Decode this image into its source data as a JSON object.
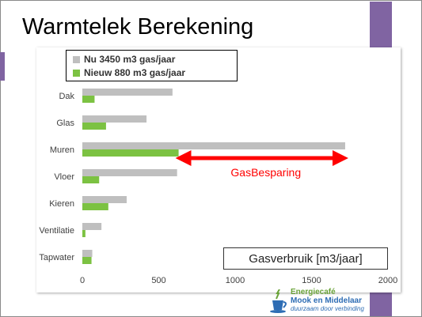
{
  "slide": {
    "title": "Warmtelek Berekening"
  },
  "legend": {
    "entries": [
      {
        "label": "Nu 3450 m3 gas/jaar",
        "color": "#bfbfbf"
      },
      {
        "label": "Nieuw 880 m3 gas/jaar",
        "color": "#7cc242"
      }
    ]
  },
  "annotation": {
    "label": "GasBesparing",
    "color": "#ff0000"
  },
  "unit_label": "Gasverbruik  [m3/jaar]",
  "logo": {
    "line1": "Energiecafé",
    "line2": "Mook en Middelaar",
    "line3": "duurzaam door verbinding"
  },
  "chart_data": {
    "type": "bar",
    "orientation": "horizontal",
    "categories": [
      "Dak",
      "Glas",
      "Muren",
      "Vloer",
      "Kieren",
      "Ventilatie",
      "Tapwater"
    ],
    "series": [
      {
        "name": "Nu 3450 m3 gas/jaar",
        "color": "#bfbfbf",
        "values": [
          590,
          420,
          1720,
          620,
          290,
          125,
          65
        ]
      },
      {
        "name": "Nieuw 880 m3 gas/jaar",
        "color": "#7cc242",
        "values": [
          80,
          155,
          630,
          110,
          170,
          20,
          60
        ]
      }
    ],
    "x_ticks": [
      "0",
      "500",
      "1000",
      "1500",
      "2000"
    ],
    "xlim": [
      0,
      2000
    ],
    "legend_position": "top-left",
    "grid": false
  }
}
